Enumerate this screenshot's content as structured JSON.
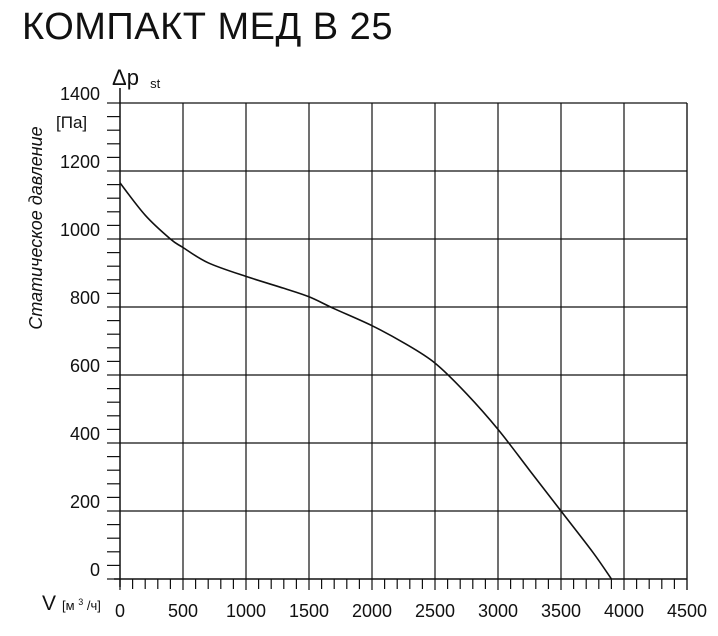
{
  "title": "КОМПАКТ МЕД В 25",
  "chart_data": {
    "type": "line",
    "title": "КОМПАКТ МЕД В 25",
    "ylabel": "Статическое давление",
    "y_symbol_main": "Δp",
    "y_symbol_sub": "st",
    "y_unit": "[Па]",
    "x_symbol": "V",
    "x_unit_pre": "[м",
    "x_unit_sup": "3",
    "x_unit_post": "/ч]",
    "xlim": [
      0,
      4500
    ],
    "ylim": [
      0,
      1400
    ],
    "x_ticks": [
      "0",
      "500",
      "1000",
      "1500",
      "2000",
      "2500",
      "3000",
      "3500",
      "4000",
      "4500"
    ],
    "y_ticks": [
      "0",
      "200",
      "400",
      "600",
      "800",
      "1000",
      "1200",
      "1400"
    ],
    "grid": true,
    "series": [
      {
        "x": [
          0,
          200,
          400,
          500,
          700,
          1000,
          1300,
          1500,
          1700,
          2000,
          2250,
          2500,
          2750,
          3000,
          3250,
          3500,
          3750,
          3900
        ],
        "y": [
          1165,
          1070,
          1000,
          975,
          930,
          890,
          855,
          830,
          795,
          745,
          695,
          635,
          545,
          440,
          320,
          200,
          80,
          0
        ]
      }
    ]
  }
}
